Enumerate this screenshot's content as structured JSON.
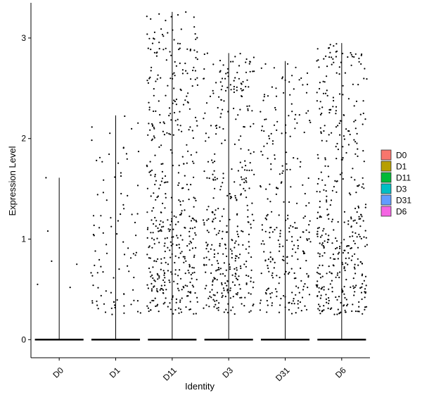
{
  "chart_data": {
    "type": "violin",
    "xlabel": "Identity",
    "ylabel": "Expression Level",
    "ylim": [
      -0.18,
      3.35
    ],
    "yticks": [
      0,
      1,
      2,
      3
    ],
    "categories": [
      "D0",
      "D1",
      "D11",
      "D3",
      "D31",
      "D6"
    ],
    "legend": {
      "position": "right",
      "entries": [
        {
          "label": "D0",
          "color": "#F8766D"
        },
        {
          "label": "D1",
          "color": "#B79F00"
        },
        {
          "label": "D11",
          "color": "#00BA38"
        },
        {
          "label": "D3",
          "color": "#00BFC4"
        },
        {
          "label": "D31",
          "color": "#619CFF"
        },
        {
          "label": "D6",
          "color": "#F564E3"
        }
      ]
    },
    "series": [
      {
        "category": "D0",
        "max": 1.61,
        "nonzero_points": 6,
        "seed": 11
      },
      {
        "category": "D1",
        "max": 2.23,
        "nonzero_points": 95,
        "seed": 23
      },
      {
        "category": "D11",
        "max": 3.26,
        "nonzero_points": 460,
        "seed": 37
      },
      {
        "category": "D3",
        "max": 2.85,
        "nonzero_points": 380,
        "seed": 41
      },
      {
        "category": "D31",
        "max": 2.77,
        "nonzero_points": 260,
        "seed": 53
      },
      {
        "category": "D6",
        "max": 2.95,
        "nonzero_points": 420,
        "seed": 67
      }
    ]
  }
}
